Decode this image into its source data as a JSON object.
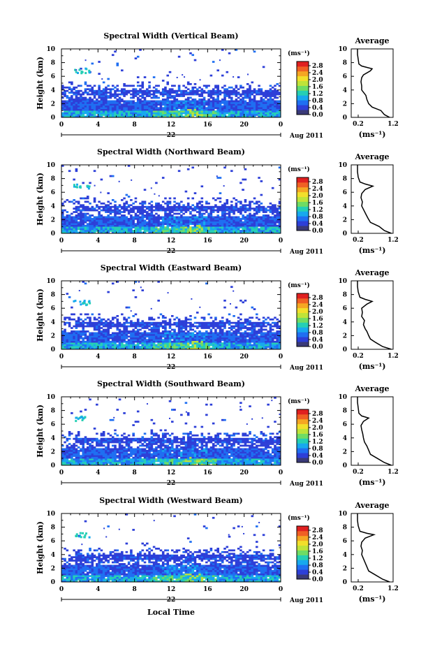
{
  "figure": {
    "date_label": "Aug 2011",
    "day_label": "22",
    "xlabel": "Local Time"
  },
  "colorbar": {
    "unit": "(ms⁻¹)",
    "ticks": [
      "0.0",
      "0.4",
      "0.8",
      "1.2",
      "1.6",
      "2.0",
      "2.4",
      "2.8"
    ],
    "colors": [
      "#3a3a78",
      "#2d3fd8",
      "#1f6ff2",
      "#17a9ee",
      "#25cfb4",
      "#6fdc64",
      "#bfe339",
      "#f2df2b",
      "#f5a623",
      "#f06024",
      "#e02020"
    ]
  },
  "chart_data": [
    {
      "type": "heatmap",
      "title": "Spectral Width (Vertical Beam)",
      "ylabel": "Height (km)",
      "xlim": [
        0,
        24
      ],
      "ylim": [
        0,
        10
      ],
      "xticks": [
        "0",
        "4",
        "8",
        "12",
        "16",
        "20",
        "0"
      ],
      "yticks": [
        "0",
        "2",
        "4",
        "6",
        "8",
        "10"
      ],
      "zlim": [
        0.0,
        2.8
      ],
      "profile": {
        "title": "Average",
        "xlabel": "(ms⁻¹)",
        "xticks": [
          "0.2",
          "1.2"
        ],
        "xlim": [
          0.0,
          1.2
        ],
        "points": [
          [
            1.1,
            0
          ],
          [
            0.95,
            0.4
          ],
          [
            0.85,
            1.0
          ],
          [
            0.6,
            1.5
          ],
          [
            0.5,
            2.0
          ],
          [
            0.45,
            2.6
          ],
          [
            0.42,
            3.2
          ],
          [
            0.36,
            3.6
          ],
          [
            0.3,
            4.0
          ],
          [
            0.3,
            4.6
          ],
          [
            0.28,
            5.2
          ],
          [
            0.3,
            5.8
          ],
          [
            0.35,
            6.2
          ],
          [
            0.55,
            6.8
          ],
          [
            0.6,
            7.1
          ],
          [
            0.45,
            7.3
          ],
          [
            0.3,
            7.5
          ],
          [
            0.22,
            7.8
          ],
          [
            0.2,
            8.5
          ],
          [
            0.18,
            9.2
          ],
          [
            0.18,
            10.0
          ]
        ]
      }
    },
    {
      "type": "heatmap",
      "title": "Spectral Width (Northward Beam)",
      "ylabel": "Height (km)",
      "xlim": [
        0,
        24
      ],
      "ylim": [
        0,
        10
      ],
      "xticks": [
        "0",
        "4",
        "8",
        "12",
        "16",
        "20",
        "0"
      ],
      "yticks": [
        "0",
        "2",
        "4",
        "6",
        "8",
        "10"
      ],
      "zlim": [
        0.0,
        2.8
      ],
      "profile": {
        "title": "Average",
        "xlabel": "(ms⁻¹)",
        "xticks": [
          "0.2",
          "1.2"
        ],
        "xlim": [
          0.0,
          1.2
        ],
        "points": [
          [
            1.15,
            0
          ],
          [
            0.95,
            0.4
          ],
          [
            0.8,
            1.0
          ],
          [
            0.55,
            1.6
          ],
          [
            0.48,
            2.2
          ],
          [
            0.42,
            2.8
          ],
          [
            0.36,
            3.4
          ],
          [
            0.3,
            4.0
          ],
          [
            0.32,
            4.6
          ],
          [
            0.28,
            5.2
          ],
          [
            0.3,
            5.8
          ],
          [
            0.4,
            6.4
          ],
          [
            0.62,
            6.9
          ],
          [
            0.4,
            7.2
          ],
          [
            0.25,
            7.5
          ],
          [
            0.2,
            8.2
          ],
          [
            0.18,
            9.0
          ],
          [
            0.18,
            10.0
          ]
        ]
      }
    },
    {
      "type": "heatmap",
      "title": "Spectral Width (Eastward Beam)",
      "ylabel": "Height (km)",
      "xlim": [
        0,
        24
      ],
      "ylim": [
        0,
        10
      ],
      "xticks": [
        "0",
        "4",
        "8",
        "12",
        "16",
        "20",
        "0"
      ],
      "yticks": [
        "0",
        "2",
        "4",
        "6",
        "8",
        "10"
      ],
      "zlim": [
        0.0,
        2.8
      ],
      "profile": {
        "title": "Average",
        "xlabel": "(ms⁻¹)",
        "xticks": [
          "0.2",
          "1.2"
        ],
        "xlim": [
          0.0,
          1.2
        ],
        "points": [
          [
            1.15,
            0
          ],
          [
            0.9,
            0.4
          ],
          [
            0.7,
            1.0
          ],
          [
            0.55,
            1.5
          ],
          [
            0.5,
            2.0
          ],
          [
            0.45,
            2.6
          ],
          [
            0.4,
            3.0
          ],
          [
            0.35,
            3.6
          ],
          [
            0.38,
            4.2
          ],
          [
            0.3,
            4.8
          ],
          [
            0.32,
            5.4
          ],
          [
            0.3,
            6.0
          ],
          [
            0.45,
            6.6
          ],
          [
            0.6,
            7.0
          ],
          [
            0.4,
            7.3
          ],
          [
            0.25,
            7.6
          ],
          [
            0.2,
            8.4
          ],
          [
            0.18,
            9.2
          ],
          [
            0.18,
            10.0
          ]
        ]
      }
    },
    {
      "type": "heatmap",
      "title": "Spectral Width (Southward Beam)",
      "ylabel": "Height (km)",
      "xlim": [
        0,
        24
      ],
      "ylim": [
        0,
        10
      ],
      "xticks": [
        "0",
        "4",
        "8",
        "12",
        "16",
        "20",
        "0"
      ],
      "yticks": [
        "0",
        "2",
        "4",
        "6",
        "8",
        "10"
      ],
      "zlim": [
        0.0,
        2.8
      ],
      "profile": {
        "title": "Average",
        "xlabel": "(ms⁻¹)",
        "xticks": [
          "0.2",
          "1.2"
        ],
        "xlim": [
          0.0,
          1.2
        ],
        "points": [
          [
            1.15,
            0
          ],
          [
            0.95,
            0.4
          ],
          [
            0.75,
            1.0
          ],
          [
            0.55,
            1.6
          ],
          [
            0.5,
            2.2
          ],
          [
            0.45,
            2.8
          ],
          [
            0.38,
            3.4
          ],
          [
            0.35,
            4.0
          ],
          [
            0.33,
            4.6
          ],
          [
            0.3,
            5.2
          ],
          [
            0.28,
            5.8
          ],
          [
            0.35,
            6.4
          ],
          [
            0.5,
            6.9
          ],
          [
            0.3,
            7.2
          ],
          [
            0.22,
            7.6
          ],
          [
            0.2,
            8.4
          ],
          [
            0.18,
            9.2
          ],
          [
            0.18,
            10.0
          ]
        ]
      }
    },
    {
      "type": "heatmap",
      "title": "Spectral Width (Westward Beam)",
      "ylabel": "Height (km)",
      "xlim": [
        0,
        24
      ],
      "ylim": [
        0,
        10
      ],
      "xticks": [
        "0",
        "4",
        "8",
        "12",
        "16",
        "20",
        "0"
      ],
      "yticks": [
        "0",
        "2",
        "4",
        "6",
        "8",
        "10"
      ],
      "zlim": [
        0.0,
        2.8
      ],
      "profile": {
        "title": "Average",
        "xlabel": "(ms⁻¹)",
        "xticks": [
          "0.2",
          "1.2"
        ],
        "xlim": [
          0.0,
          1.2
        ],
        "points": [
          [
            1.1,
            0
          ],
          [
            0.9,
            0.4
          ],
          [
            0.7,
            1.0
          ],
          [
            0.5,
            1.6
          ],
          [
            0.45,
            2.2
          ],
          [
            0.4,
            2.8
          ],
          [
            0.35,
            3.4
          ],
          [
            0.3,
            4.0
          ],
          [
            0.32,
            4.6
          ],
          [
            0.28,
            5.2
          ],
          [
            0.3,
            5.8
          ],
          [
            0.4,
            6.4
          ],
          [
            0.65,
            6.9
          ],
          [
            0.45,
            7.1
          ],
          [
            0.25,
            7.4
          ],
          [
            0.2,
            8.2
          ],
          [
            0.18,
            9.0
          ],
          [
            0.18,
            10.0
          ]
        ]
      }
    }
  ]
}
